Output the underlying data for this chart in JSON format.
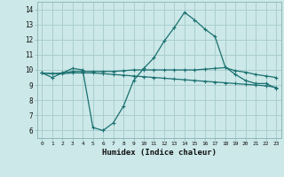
{
  "xlabel": "Humidex (Indice chaleur)",
  "ylabel": "",
  "bg_color": "#cce8e8",
  "grid_color": "#aacece",
  "line_color": "#1a7070",
  "xlim": [
    -0.5,
    23.5
  ],
  "ylim": [
    5.5,
    14.5
  ],
  "yticks": [
    6,
    7,
    8,
    9,
    10,
    11,
    12,
    13,
    14
  ],
  "xticks": [
    0,
    1,
    2,
    3,
    4,
    5,
    6,
    7,
    8,
    9,
    10,
    11,
    12,
    13,
    14,
    15,
    16,
    17,
    18,
    19,
    20,
    21,
    22,
    23
  ],
  "line1_x": [
    0,
    1,
    2,
    3,
    4,
    5,
    6,
    7,
    8,
    9,
    10,
    11,
    12,
    13,
    14,
    15,
    16,
    17,
    18,
    19,
    20,
    21,
    22,
    23
  ],
  "line1_y": [
    9.8,
    9.5,
    9.8,
    10.1,
    10.0,
    6.2,
    6.0,
    6.5,
    7.6,
    9.3,
    10.1,
    10.8,
    11.9,
    12.8,
    13.8,
    13.3,
    12.7,
    12.2,
    10.2,
    9.7,
    9.3,
    9.1,
    9.1,
    8.8
  ],
  "line2_x": [
    0,
    1,
    2,
    3,
    4,
    5,
    6,
    7,
    8,
    9,
    10,
    11,
    12,
    13,
    14,
    15,
    16,
    17,
    18,
    19,
    20,
    21,
    22,
    23
  ],
  "line2_y": [
    9.8,
    9.75,
    9.8,
    9.9,
    9.9,
    9.9,
    9.9,
    9.9,
    9.95,
    10.0,
    10.0,
    10.0,
    10.0,
    10.0,
    10.0,
    10.0,
    10.05,
    10.1,
    10.15,
    9.95,
    9.85,
    9.7,
    9.6,
    9.5
  ],
  "line3_x": [
    0,
    1,
    2,
    3,
    4,
    5,
    6,
    7,
    8,
    9,
    10,
    11,
    12,
    13,
    14,
    15,
    16,
    17,
    18,
    19,
    20,
    21,
    22,
    23
  ],
  "line3_y": [
    9.8,
    9.75,
    9.75,
    9.8,
    9.8,
    9.8,
    9.75,
    9.7,
    9.65,
    9.6,
    9.55,
    9.5,
    9.45,
    9.4,
    9.35,
    9.3,
    9.25,
    9.2,
    9.15,
    9.1,
    9.05,
    9.0,
    8.95,
    8.85
  ]
}
